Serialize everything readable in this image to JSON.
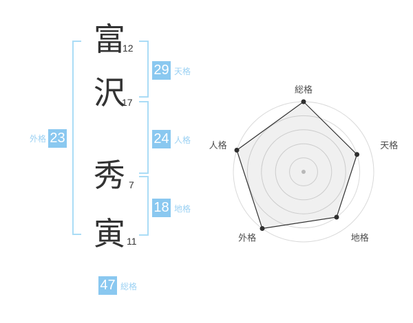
{
  "name": {
    "characters": [
      {
        "char": "富",
        "strokes": "12"
      },
      {
        "char": "沢",
        "strokes": "17"
      },
      {
        "char": "秀",
        "strokes": "7"
      },
      {
        "char": "寅",
        "strokes": "11"
      }
    ],
    "badges": [
      {
        "id": "tenkaku",
        "label": "天格",
        "value": "29"
      },
      {
        "id": "jinkaku",
        "label": "人格",
        "value": "24"
      },
      {
        "id": "chikaku",
        "label": "地格",
        "value": "18"
      },
      {
        "id": "gaikaku",
        "label": "外格",
        "value": "23"
      },
      {
        "id": "soukaku",
        "label": "総格",
        "value": "47"
      }
    ]
  },
  "colors": {
    "accent": "#8ac8f0",
    "accent_text": "#9bd1f3",
    "bracket": "#aadcf6",
    "text_dark": "#333333",
    "ring": "#d9d9d9",
    "polygon": "#2f2f2f",
    "polygon_fill": "rgba(0,0,0,0.06)",
    "center_dot": "#c4c4c4",
    "chart_label": "#4d4d4d"
  },
  "chart_data": {
    "type": "radar",
    "categories": [
      "総格",
      "天格",
      "地格",
      "外格",
      "人格"
    ],
    "values": [
      5,
      4,
      4,
      5,
      5
    ],
    "max": 5,
    "rings": 5,
    "start_angle_deg": -90,
    "clockwise": true,
    "grid": "concentric-circles",
    "spokes": false,
    "legend": false,
    "title": ""
  }
}
